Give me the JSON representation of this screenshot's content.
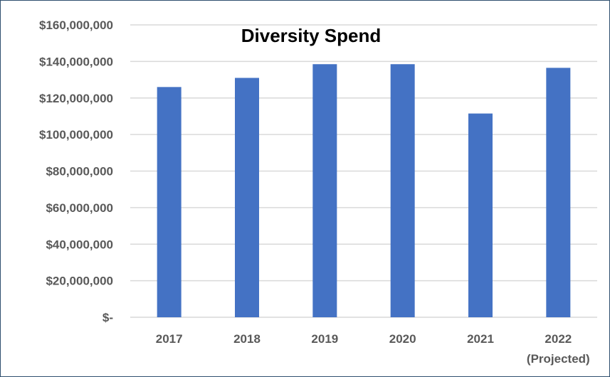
{
  "chart_data": {
    "type": "bar",
    "title": "Diversity Spend",
    "xlabel": "",
    "ylabel": "",
    "categories": [
      {
        "label": "2017",
        "sublabel": ""
      },
      {
        "label": "2018",
        "sublabel": ""
      },
      {
        "label": "2019",
        "sublabel": ""
      },
      {
        "label": "2020",
        "sublabel": ""
      },
      {
        "label": "2021",
        "sublabel": ""
      },
      {
        "label": "2022",
        "sublabel": "(Projected)"
      }
    ],
    "values": [
      126000000,
      131000000,
      138500000,
      138500000,
      111500000,
      136500000
    ],
    "ylim": [
      0,
      160000000
    ],
    "yticks": [
      {
        "value": 0,
        "label": "$-"
      },
      {
        "value": 20000000,
        "label": "$20,000,000"
      },
      {
        "value": 40000000,
        "label": "$40,000,000"
      },
      {
        "value": 60000000,
        "label": "$60,000,000"
      },
      {
        "value": 80000000,
        "label": "$80,000,000"
      },
      {
        "value": 100000000,
        "label": "$100,000,000"
      },
      {
        "value": 120000000,
        "label": "$120,000,000"
      },
      {
        "value": 140000000,
        "label": "$140,000,000"
      },
      {
        "value": 160000000,
        "label": "$160,000,000"
      }
    ],
    "grid": true,
    "legend": "none",
    "colors": {
      "bar": "#4472C4",
      "grid": "#D9D9D9",
      "tick_text": "#595959",
      "title_text": "#000000"
    }
  }
}
